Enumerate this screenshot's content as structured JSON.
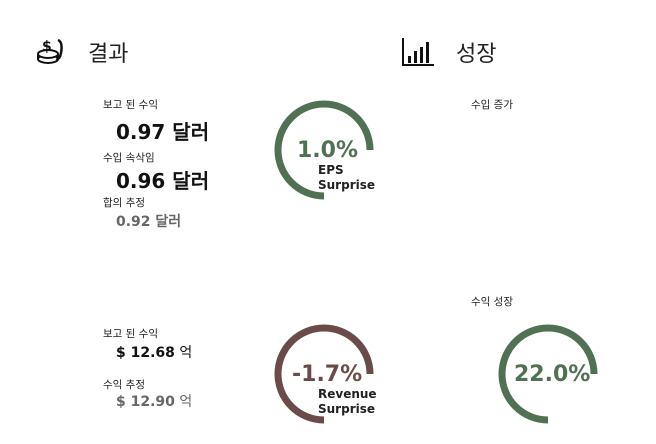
{
  "colors": {
    "green": "#517153",
    "brown": "#6b4b4a"
  },
  "earnings": {
    "icon": "coins-icon",
    "title": "결과",
    "reported_label": "보고 된 수익",
    "reported_value": "0.97 달러",
    "adjusted_label": "수입 속삭임",
    "adjusted_value": "0.96 달러",
    "consensus_label": "합의 추정",
    "consensus_value": "0.92 달러",
    "eps_surprise": {
      "percent": "1.0%",
      "fraction": 0.75,
      "caption_1": "EPS",
      "caption_2": "Surprise"
    },
    "revenue_reported_label": "보고 된 수익",
    "revenue_reported_amount": "$ 12.68",
    "revenue_reported_unit": "억",
    "revenue_estimate_label": "수익 추정",
    "revenue_estimate_amount": "$ 12.90",
    "revenue_estimate_unit": "억",
    "revenue_surprise": {
      "percent": "-1.7%",
      "fraction": 0.75,
      "caption_1": "Revenue",
      "caption_2": "Surprise"
    }
  },
  "growth": {
    "icon": "bar-chart-icon",
    "title": "성장",
    "earnings_growth_label": "수입 증가",
    "revenue_growth_label": "수익 성장",
    "revenue_growth": {
      "percent": "22.0%",
      "fraction": 0.75
    }
  }
}
